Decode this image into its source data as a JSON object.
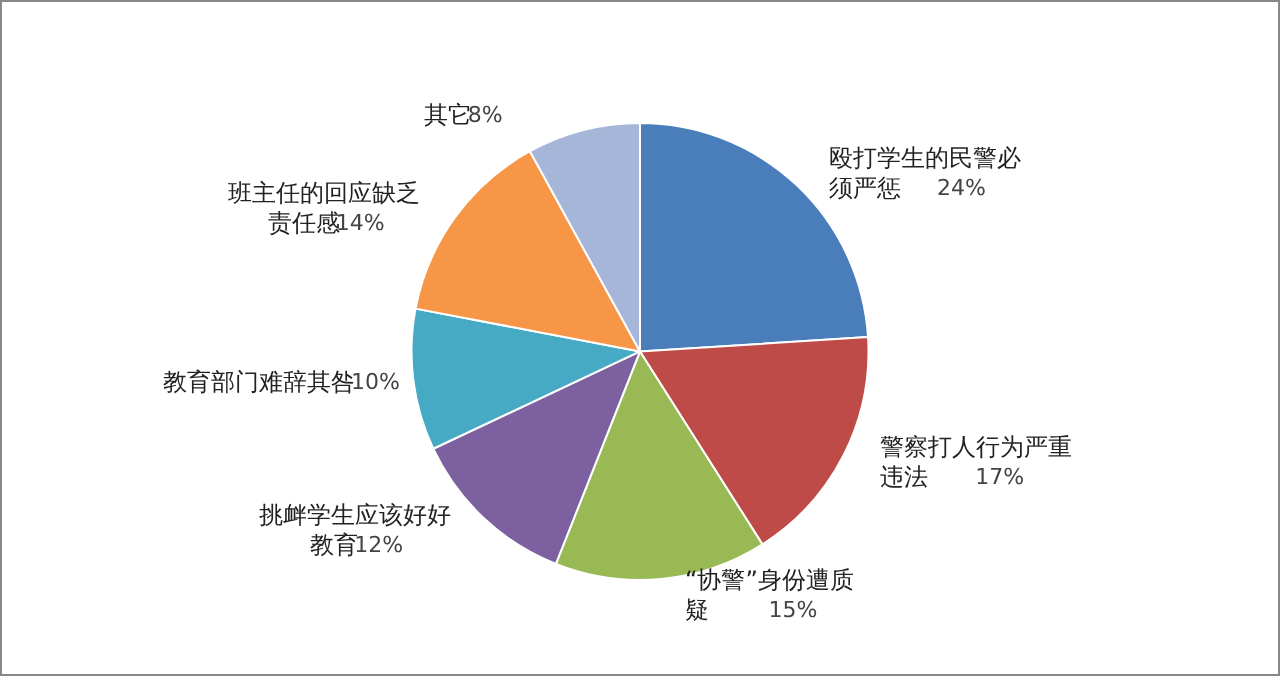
{
  "chart_data": {
    "type": "pie",
    "categories": [
      "殴打学生的民警必须严惩",
      "警察打人行为严重违法",
      "“协警”身份遭质疑",
      "挑衅学生应该好好教育",
      "教育部门难辞其咎",
      "班主任的回应缺乏责任感",
      "其它"
    ],
    "values": [
      24,
      17,
      15,
      12,
      10,
      14,
      8
    ],
    "colors": [
      "#4a7ebb",
      "#be4b48",
      "#98b954",
      "#7d60a0",
      "#46aac5",
      "#f79646",
      "#a5b6d9"
    ],
    "value_labels": [
      "24%",
      "17%",
      "15%",
      "12%",
      "10%",
      "14%",
      "8%"
    ],
    "legend": false
  }
}
